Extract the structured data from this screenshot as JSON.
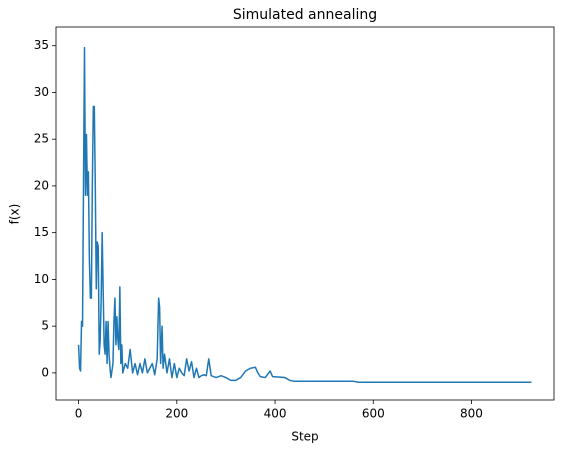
{
  "chart_data": {
    "type": "line",
    "title": "Simulated annealing",
    "x_label": "Step",
    "y_label": "f(x)",
    "xlim": [
      -46,
      968
    ],
    "ylim": [
      -2.9,
      37
    ],
    "xticks": [
      0,
      200,
      400,
      600,
      800
    ],
    "yticks": [
      0,
      5,
      10,
      15,
      20,
      25,
      30,
      35
    ],
    "series": [
      {
        "color": "#1f77b4",
        "x": [
          0,
          2,
          4,
          6,
          8,
          10,
          12,
          14,
          16,
          18,
          20,
          22,
          24,
          26,
          28,
          30,
          32,
          34,
          36,
          38,
          40,
          42,
          44,
          46,
          48,
          50,
          52,
          54,
          56,
          58,
          60,
          62,
          64,
          66,
          70,
          72,
          74,
          76,
          78,
          80,
          82,
          84,
          86,
          88,
          90,
          95,
          100,
          105,
          110,
          115,
          120,
          125,
          130,
          135,
          140,
          145,
          150,
          155,
          160,
          163,
          165,
          167,
          170,
          172,
          175,
          180,
          185,
          190,
          195,
          200,
          205,
          210,
          215,
          220,
          225,
          230,
          235,
          240,
          245,
          250,
          255,
          260,
          265,
          270,
          280,
          290,
          300,
          310,
          320,
          330,
          340,
          350,
          360,
          365,
          370,
          380,
          390,
          395,
          420,
          430,
          440,
          500,
          560,
          570,
          922
        ],
        "values": [
          3,
          0.5,
          0.2,
          5.5,
          5,
          20,
          34.8,
          19,
          25.5,
          19,
          21.5,
          12,
          8,
          8,
          20,
          28.5,
          28.5,
          20,
          9,
          14,
          13.5,
          2,
          3.5,
          8,
          15,
          9,
          3,
          2,
          5.5,
          1,
          5.5,
          2,
          0.5,
          -0.5,
          1,
          5.5,
          8,
          3,
          6,
          3.5,
          2.5,
          9.2,
          1,
          3,
          0,
          1,
          0.5,
          2.5,
          0,
          1,
          -0.2,
          1,
          0,
          1.5,
          0,
          0.5,
          1,
          -0.2,
          1.5,
          8,
          7,
          1,
          5,
          0.5,
          2,
          0,
          1.5,
          -0.5,
          1,
          -0.5,
          0.5,
          0,
          -0.3,
          1.5,
          0.2,
          1.2,
          -0.5,
          0.5,
          -0.5,
          -0.3,
          -0.2,
          -0.3,
          1.5,
          -0.3,
          -0.5,
          -0.3,
          -0.5,
          -0.8,
          -0.8,
          -0.5,
          0.2,
          0.5,
          0.6,
          0,
          -0.4,
          -0.5,
          0.2,
          -0.4,
          -0.5,
          -0.8,
          -0.9,
          -0.9,
          -0.9,
          -1,
          -1
        ]
      }
    ]
  }
}
